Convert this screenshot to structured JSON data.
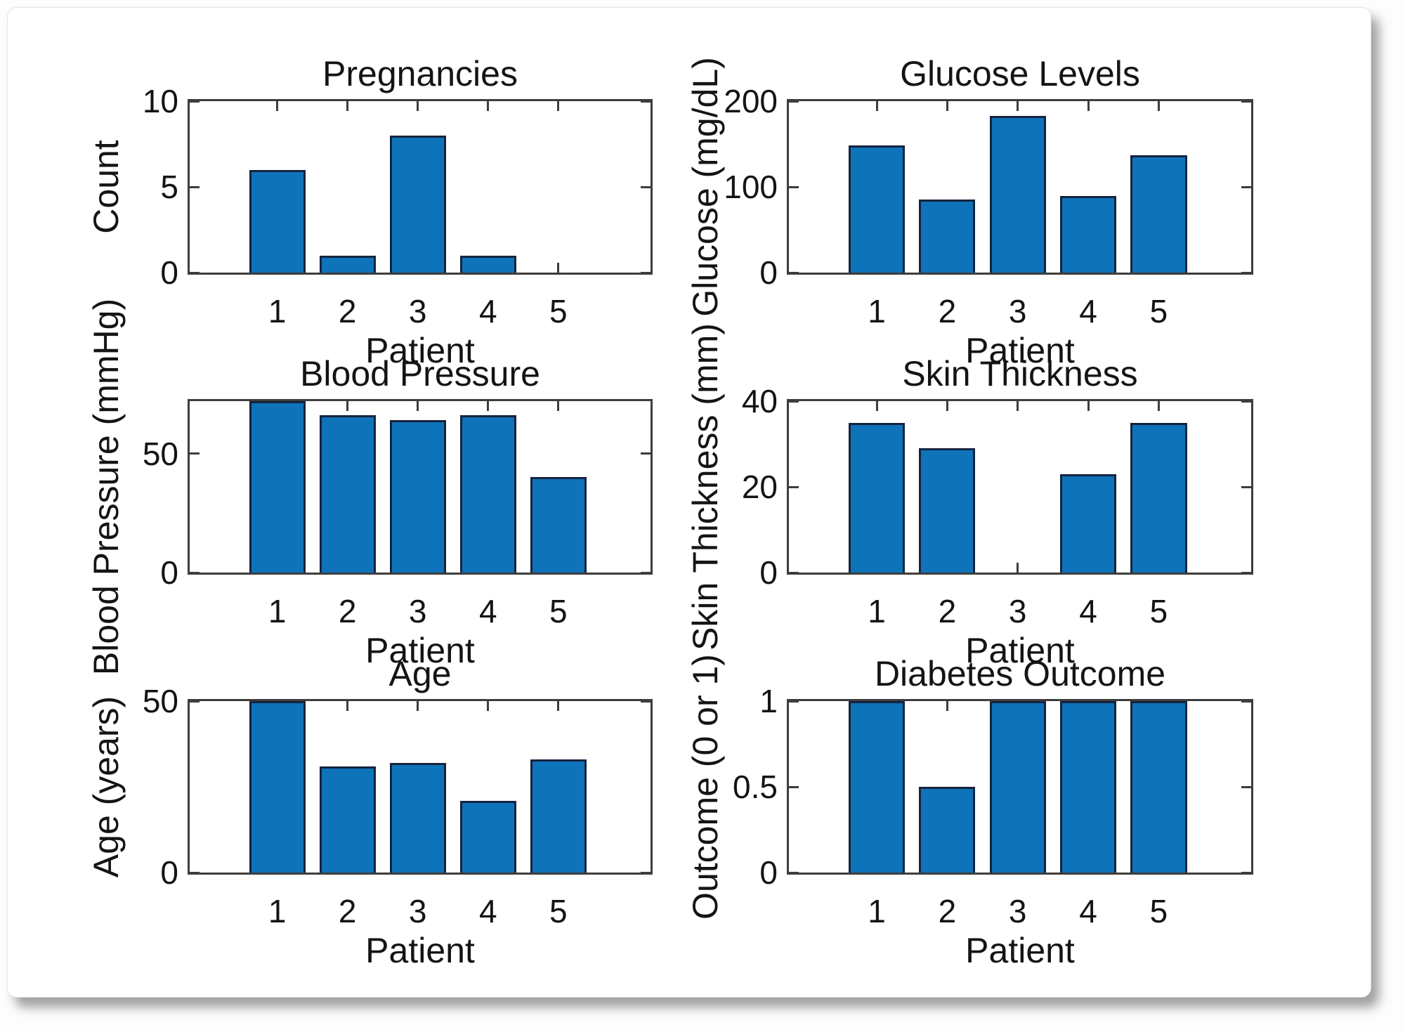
{
  "figure": {
    "background": "#ffffff",
    "card_background": "#ffffff",
    "bar_fill_color": "#0e73b9",
    "bar_edge_color": "#15243e",
    "axis_color": "#3d3d3d",
    "text_color": "#141414"
  },
  "chart_data": [
    {
      "type": "bar",
      "title": "Pregnancies",
      "xlabel": "Patient",
      "ylabel": "Count",
      "categories": [
        "1",
        "2",
        "3",
        "4",
        "5"
      ],
      "values": [
        6,
        1,
        8,
        1,
        0
      ],
      "ylim": [
        0,
        10
      ],
      "yticks": [
        0,
        5,
        10
      ],
      "grid": false,
      "legend": false
    },
    {
      "type": "bar",
      "title": "Glucose Levels",
      "xlabel": "Patient",
      "ylabel": "Glucose (mg/dL)",
      "categories": [
        "1",
        "2",
        "3",
        "4",
        "5"
      ],
      "values": [
        148,
        85,
        183,
        89,
        137
      ],
      "ylim": [
        0,
        200
      ],
      "yticks": [
        0,
        100,
        200
      ],
      "grid": false,
      "legend": false
    },
    {
      "type": "bar",
      "title": "Blood Pressure",
      "xlabel": "Patient",
      "ylabel": "Blood Pressure (mmHg)",
      "categories": [
        "1",
        "2",
        "3",
        "4",
        "5"
      ],
      "values": [
        72,
        66,
        64,
        66,
        40
      ],
      "ylim": [
        0,
        72
      ],
      "yticks": [
        0,
        50
      ],
      "grid": false,
      "legend": false
    },
    {
      "type": "bar",
      "title": "Skin Thickness",
      "xlabel": "Patient",
      "ylabel": "Skin Thickness (mm)",
      "categories": [
        "1",
        "2",
        "3",
        "4",
        "5"
      ],
      "values": [
        35,
        29,
        0,
        23,
        35
      ],
      "ylim": [
        0,
        40
      ],
      "yticks": [
        0,
        20,
        40
      ],
      "grid": false,
      "legend": false
    },
    {
      "type": "bar",
      "title": "Age",
      "xlabel": "Patient",
      "ylabel": "Age (years)",
      "categories": [
        "1",
        "2",
        "3",
        "4",
        "5"
      ],
      "values": [
        50,
        31,
        32,
        21,
        33
      ],
      "ylim": [
        0,
        50
      ],
      "yticks": [
        0,
        50
      ],
      "grid": false,
      "legend": false
    },
    {
      "type": "bar",
      "title": "Diabetes Outcome",
      "xlabel": "Patient",
      "ylabel": "Outcome (0 or 1)",
      "categories": [
        "1",
        "2",
        "3",
        "4",
        "5"
      ],
      "values": [
        1,
        0.5,
        1,
        1,
        1
      ],
      "ylim": [
        0,
        1
      ],
      "yticks": [
        0,
        0.5,
        1
      ],
      "grid": false,
      "legend": false
    }
  ]
}
